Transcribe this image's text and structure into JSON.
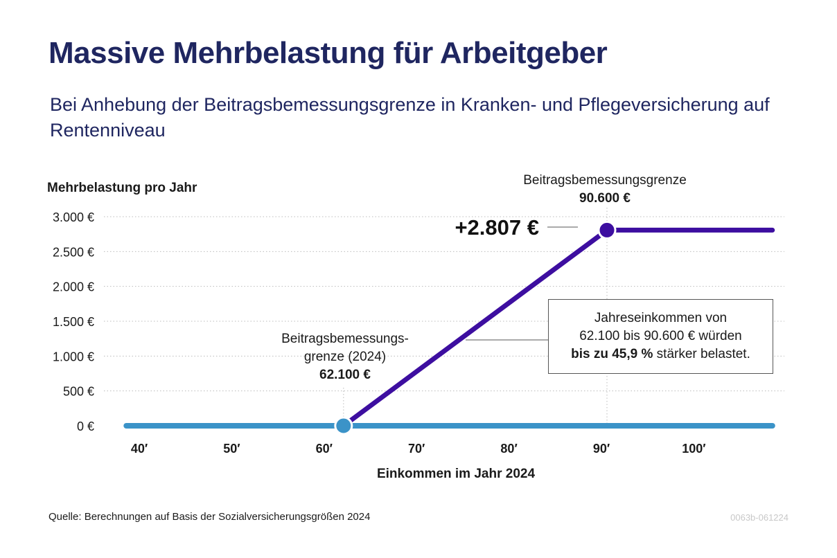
{
  "title": "Massive Mehrbelastung für Arbeitgeber",
  "subtitle": "Bei Anhebung der Beitragsbemessungsgrenze in Kranken- und Pflegeversicherung auf Rentenniveau",
  "source": "Quelle: Berechnungen auf Basis der Sozialversicherungsgrößen 2024",
  "code": "0063b-061224",
  "colors": {
    "title": "#1f2660",
    "baseline": "#3b93c8",
    "increase": "#3d0ea0",
    "grid": "#bbbbbb"
  },
  "chart_data": {
    "type": "line",
    "ylabel": "Mehrbelastung pro Jahr",
    "xlabel": "Einkommen im Jahr 2024",
    "xlim": [
      38,
      108.5
    ],
    "ylim": [
      0,
      3000
    ],
    "x_ticks": [
      40,
      50,
      60,
      70,
      80,
      90,
      100
    ],
    "x_tick_labels": [
      "40′",
      "50′",
      "60′",
      "70′",
      "80′",
      "90′",
      "100′"
    ],
    "y_ticks": [
      0,
      500,
      1000,
      1500,
      2000,
      2500,
      3000
    ],
    "y_tick_labels": [
      "0 €",
      "500 €",
      "1.000 €",
      "1.500 €",
      "2.000 €",
      "2.500 €",
      "3.000 €"
    ],
    "grid": true,
    "series": [
      {
        "color": "#3b93c8",
        "points": [
          [
            38.6,
            0
          ],
          [
            108.5,
            0
          ]
        ]
      },
      {
        "color": "#3d0ea0",
        "points": [
          [
            62.1,
            0
          ],
          [
            90.6,
            2807
          ],
          [
            108.5,
            2807
          ]
        ]
      }
    ],
    "markers": [
      {
        "x": 62.1,
        "y": 0,
        "color": "#3b93c8"
      },
      {
        "x": 90.6,
        "y": 2807,
        "color": "#3d0ea0"
      }
    ],
    "annotations": {
      "old_limit_line1": "Beitragsbemessungs-",
      "old_limit_line2": "grenze (2024)",
      "old_limit_value": "62.100 €",
      "new_limit_label": "Beitragsbemessungsgrenze",
      "new_limit_value": "90.600 €",
      "max_value_label": "+2.807 €",
      "note_line1": "Jahreseinkommen von",
      "note_line2": "62.100 bis 90.600 € würden",
      "note_bold": "bis zu 45,9 %",
      "note_rest": " stärker belastet."
    }
  }
}
